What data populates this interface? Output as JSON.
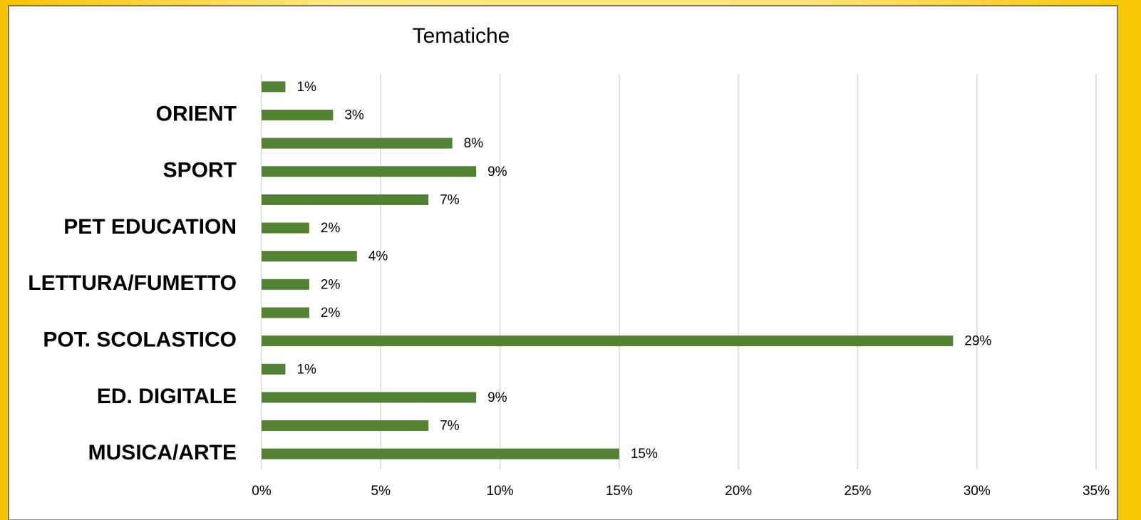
{
  "chart_data": {
    "type": "bar",
    "orientation": "horizontal",
    "title": "Tematiche",
    "categories": [
      "MUSICA/ARTE",
      null,
      "ED. DIGITALE",
      null,
      "POT. SCOLASTICO",
      null,
      "LETTURA/FUMETTO",
      null,
      "PET EDUCATION",
      null,
      "SPORT",
      null,
      "ORIENT",
      null
    ],
    "values": [
      15,
      7,
      9,
      1,
      29,
      2,
      2,
      4,
      2,
      7,
      9,
      8,
      3,
      1
    ],
    "value_labels": [
      "15%",
      "7%",
      "9%",
      "1%",
      "29%",
      "2%",
      "2%",
      "4%",
      "2%",
      "7%",
      "9%",
      "8%",
      "3%",
      "1%"
    ],
    "color": "#548235",
    "xlim": [
      0,
      35
    ],
    "xticks": [
      {
        "value": 0,
        "label": "0%"
      },
      {
        "value": 5,
        "label": "5%"
      },
      {
        "value": 10,
        "label": "10%"
      },
      {
        "value": 15,
        "label": "15%"
      },
      {
        "value": 20,
        "label": "20%"
      },
      {
        "value": 25,
        "label": "25%"
      },
      {
        "value": 30,
        "label": "30%"
      },
      {
        "value": 35,
        "label": "35%"
      }
    ],
    "grid": true
  }
}
